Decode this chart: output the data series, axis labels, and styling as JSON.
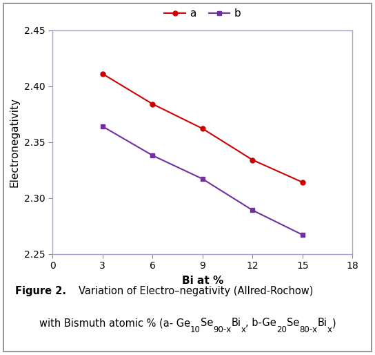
{
  "x": [
    3,
    6,
    9,
    12,
    15
  ],
  "y_a": [
    2.411,
    2.384,
    2.362,
    2.334,
    2.314
  ],
  "y_b": [
    2.364,
    2.338,
    2.317,
    2.289,
    2.267
  ],
  "color_a": "#CC0000",
  "color_b": "#7030A0",
  "marker_a": "o",
  "marker_b": "s",
  "xlabel": "Bi at %",
  "ylabel": "Electronegativity",
  "xlim": [
    0,
    18
  ],
  "ylim": [
    2.25,
    2.45
  ],
  "xticks": [
    0,
    3,
    6,
    9,
    12,
    15,
    18
  ],
  "yticks": [
    2.25,
    2.3,
    2.35,
    2.4,
    2.45
  ],
  "legend_a": "a",
  "legend_b": "b",
  "inner_box_color": "#b0a0cc",
  "outer_box_color": "#999999",
  "background_color": "#ffffff"
}
